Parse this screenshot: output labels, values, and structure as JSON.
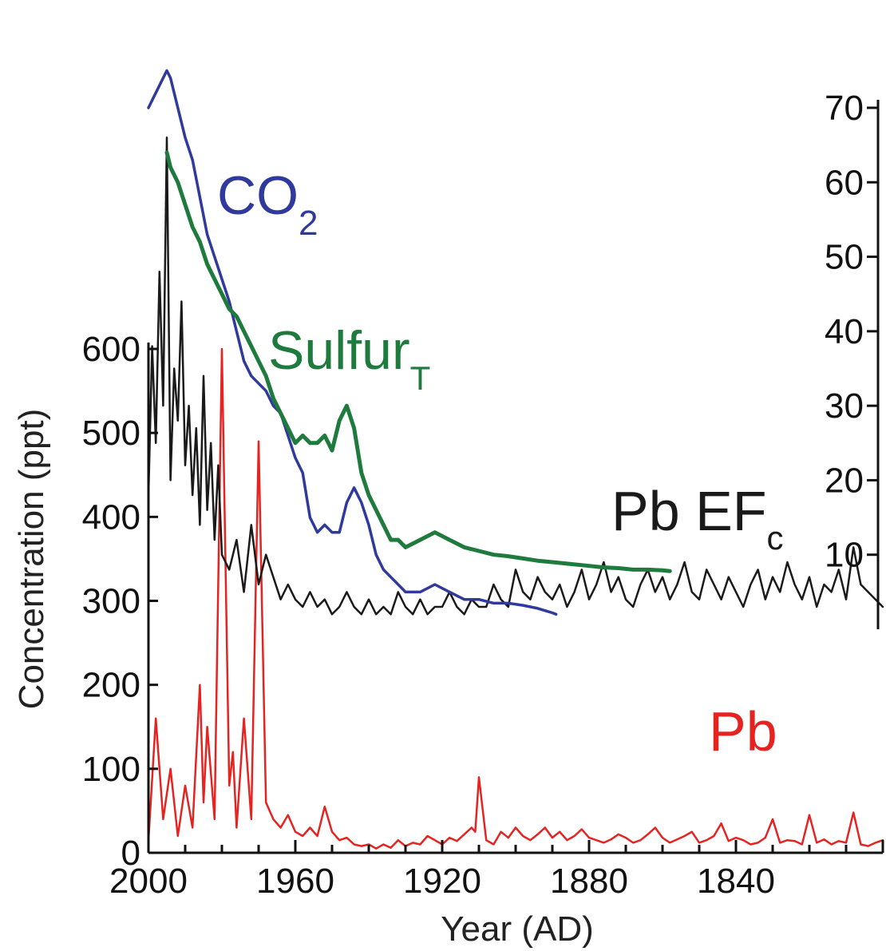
{
  "chart_data": {
    "type": "line",
    "title": "",
    "xlabel": "Year (AD)",
    "ylabel": "Concentration (ppt)",
    "xlim": [
      2000,
      1800
    ],
    "ylim": [
      0,
      600
    ],
    "y2lim": [
      0,
      70
    ],
    "x_ticks": [
      2000,
      1960,
      1920,
      1880,
      1840
    ],
    "y_ticks": [
      0,
      100,
      200,
      300,
      400,
      500,
      600
    ],
    "y2_ticks": [
      10,
      20,
      30,
      40,
      50,
      60,
      70
    ],
    "grid": false,
    "series": [
      {
        "name": "Pb",
        "axis": "left",
        "color": "#e52421",
        "x": [
          2000,
          1998,
          1996,
          1994,
          1992,
          1990,
          1988,
          1986,
          1985,
          1984,
          1982,
          1980,
          1978,
          1977,
          1976,
          1974,
          1972,
          1970,
          1968,
          1966,
          1964,
          1962,
          1960,
          1958,
          1956,
          1954,
          1952,
          1950,
          1948,
          1946,
          1944,
          1942,
          1940,
          1938,
          1936,
          1934,
          1932,
          1930,
          1928,
          1926,
          1924,
          1922,
          1920,
          1918,
          1916,
          1914,
          1912,
          1911,
          1910,
          1908,
          1906,
          1904,
          1902,
          1900,
          1898,
          1896,
          1894,
          1892,
          1890,
          1888,
          1886,
          1884,
          1882,
          1880,
          1878,
          1876,
          1874,
          1872,
          1870,
          1868,
          1866,
          1864,
          1862,
          1860,
          1858,
          1856,
          1854,
          1852,
          1850,
          1848,
          1846,
          1844,
          1842,
          1840,
          1838,
          1836,
          1834,
          1832,
          1830,
          1828,
          1826,
          1824,
          1822,
          1820,
          1818,
          1816,
          1814,
          1812,
          1810,
          1808,
          1806,
          1804,
          1802,
          1800
        ],
        "values": [
          15,
          160,
          40,
          100,
          20,
          80,
          30,
          200,
          60,
          150,
          40,
          600,
          80,
          120,
          30,
          160,
          40,
          490,
          60,
          40,
          30,
          45,
          25,
          20,
          30,
          20,
          55,
          25,
          15,
          18,
          10,
          8,
          10,
          5,
          10,
          6,
          15,
          8,
          12,
          10,
          20,
          15,
          10,
          18,
          14,
          22,
          30,
          25,
          90,
          15,
          10,
          25,
          18,
          30,
          20,
          15,
          22,
          30,
          18,
          25,
          15,
          20,
          28,
          18,
          15,
          12,
          16,
          22,
          18,
          12,
          15,
          22,
          30,
          18,
          12,
          16,
          20,
          25,
          12,
          15,
          20,
          35,
          14,
          18,
          15,
          10,
          12,
          18,
          40,
          12,
          15,
          14,
          10,
          45,
          12,
          16,
          10,
          14,
          12,
          48,
          10,
          8,
          12,
          15
        ]
      },
      {
        "name": "Pb EF",
        "axis": "right",
        "color": "#1a1a1a",
        "x": [
          2000,
          1999,
          1998,
          1997,
          1996,
          1995,
          1994,
          1993,
          1992,
          1991,
          1990,
          1989,
          1988,
          1987,
          1986,
          1985,
          1984,
          1983,
          1982,
          1981,
          1980,
          1978,
          1976,
          1974,
          1972,
          1970,
          1968,
          1966,
          1964,
          1962,
          1960,
          1958,
          1956,
          1954,
          1952,
          1950,
          1948,
          1946,
          1944,
          1942,
          1940,
          1938,
          1936,
          1934,
          1932,
          1930,
          1928,
          1926,
          1924,
          1922,
          1920,
          1918,
          1916,
          1914,
          1912,
          1910,
          1908,
          1906,
          1904,
          1902,
          1900,
          1898,
          1896,
          1894,
          1892,
          1890,
          1888,
          1886,
          1884,
          1882,
          1880,
          1878,
          1876,
          1874,
          1872,
          1870,
          1868,
          1866,
          1864,
          1862,
          1860,
          1858,
          1856,
          1854,
          1852,
          1850,
          1848,
          1846,
          1844,
          1842,
          1840,
          1838,
          1836,
          1834,
          1832,
          1830,
          1828,
          1826,
          1824,
          1822,
          1820,
          1818,
          1816,
          1814,
          1812,
          1810,
          1808,
          1806,
          1804,
          1802,
          1800
        ],
        "values": [
          18,
          38,
          25,
          48,
          30,
          66,
          20,
          35,
          28,
          44,
          22,
          30,
          18,
          27,
          14,
          34,
          16,
          25,
          12,
          22,
          10,
          8,
          12,
          5,
          14,
          6,
          10,
          7,
          4,
          6,
          4,
          3,
          5,
          3,
          4,
          2,
          3,
          5,
          3,
          2,
          4,
          2,
          3,
          2,
          5,
          3,
          2,
          4,
          2,
          3,
          3,
          5,
          3,
          2,
          4,
          3,
          3,
          6,
          4,
          3,
          8,
          5,
          4,
          7,
          5,
          4,
          6,
          3,
          5,
          8,
          4,
          6,
          9,
          5,
          7,
          4,
          3,
          6,
          8,
          5,
          7,
          4,
          6,
          9,
          5,
          4,
          8,
          6,
          4,
          7,
          5,
          3,
          6,
          8,
          4,
          7,
          5,
          9,
          6,
          4,
          7,
          3,
          6,
          5,
          8,
          4,
          11,
          6,
          5,
          4,
          3
        ]
      },
      {
        "name": "CO2",
        "axis": "right",
        "color": "#303a9c",
        "x": [
          2000,
          1998,
          1996,
          1995,
          1994,
          1992,
          1990,
          1988,
          1986,
          1984,
          1982,
          1980,
          1978,
          1976,
          1974,
          1972,
          1970,
          1968,
          1966,
          1964,
          1962,
          1960,
          1958,
          1956,
          1954,
          1952,
          1950,
          1948,
          1946,
          1944,
          1942,
          1940,
          1938,
          1936,
          1934,
          1932,
          1930,
          1926,
          1922,
          1918,
          1914,
          1910,
          1906,
          1902,
          1898,
          1896,
          1894,
          1892,
          1890,
          1889
        ],
        "values": [
          70,
          72,
          74,
          75,
          74,
          70,
          66,
          63,
          58,
          53,
          50,
          47,
          44,
          40,
          36,
          34,
          33,
          32,
          30,
          29,
          26,
          23,
          21,
          15,
          13,
          14,
          13,
          13,
          17,
          19,
          17,
          14,
          10,
          8,
          7,
          6,
          5,
          5,
          6,
          5,
          4,
          4,
          3.5,
          3.5,
          3.2,
          3,
          2.8,
          2.5,
          2.2,
          2
        ]
      },
      {
        "name": "Sulfur",
        "axis": "right",
        "color": "#1f7a3e",
        "x": [
          1995,
          1994,
          1992,
          1990,
          1988,
          1986,
          1984,
          1982,
          1980,
          1978,
          1976,
          1974,
          1972,
          1970,
          1968,
          1966,
          1964,
          1962,
          1960,
          1958,
          1956,
          1954,
          1952,
          1950,
          1948,
          1946,
          1944,
          1942,
          1940,
          1938,
          1936,
          1934,
          1932,
          1930,
          1926,
          1922,
          1918,
          1914,
          1910,
          1906,
          1902,
          1898,
          1894,
          1890,
          1886,
          1880,
          1876,
          1872,
          1868,
          1864,
          1860,
          1858
        ],
        "values": [
          64,
          62,
          60,
          57,
          54,
          52,
          49,
          47,
          45,
          43,
          42,
          40,
          38,
          36,
          34,
          31,
          29,
          27,
          25,
          26,
          25,
          25,
          26,
          24,
          28,
          30,
          27,
          21,
          18,
          16,
          14,
          12,
          12,
          11,
          12,
          13,
          12,
          11,
          10.5,
          10,
          9.8,
          9.5,
          9.2,
          9,
          8.8,
          8.5,
          8.3,
          8.2,
          8,
          8,
          7.9,
          7.8
        ]
      }
    ],
    "labels": {
      "co2": {
        "main": "CO",
        "sub": "2"
      },
      "sulfur": {
        "main": "Sulfur",
        "sub": "T"
      },
      "pbef": {
        "main": "Pb EF",
        "sub": "c"
      },
      "pb": {
        "main": "Pb"
      }
    },
    "colors": {
      "axis": "#111111",
      "pb": "#e52421",
      "pbef": "#1a1a1a",
      "co2": "#303a9c",
      "sulfur": "#1f7a3e"
    }
  }
}
